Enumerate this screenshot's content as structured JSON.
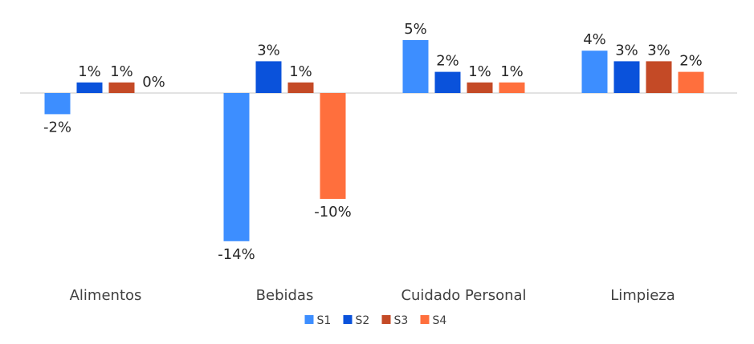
{
  "chart_data": {
    "type": "bar",
    "title": "",
    "xlabel": "",
    "ylabel": "",
    "categories": [
      "Alimentos",
      "Bebidas",
      "Cuidado Personal",
      "Limpieza"
    ],
    "series": [
      {
        "name": "S1",
        "color": "#3D8EFF",
        "values": [
          -2,
          -14,
          5,
          4
        ],
        "labels": [
          "-2%",
          "-14%",
          "5%",
          "4%"
        ]
      },
      {
        "name": "S2",
        "color": "#0A52DB",
        "values": [
          1,
          3,
          2,
          3
        ],
        "labels": [
          "1%",
          "3%",
          "2%",
          "3%"
        ]
      },
      {
        "name": "S3",
        "color": "#C44A26",
        "values": [
          1,
          1,
          1,
          3
        ],
        "labels": [
          "1%",
          "1%",
          "1%",
          "3%"
        ]
      },
      {
        "name": "S4",
        "color": "#FF6F3D",
        "values": [
          0,
          -10,
          1,
          2
        ],
        "labels": [
          "0%",
          "-10%",
          "1%",
          "2%"
        ]
      }
    ],
    "ylim": [
      -14,
      5
    ],
    "grid": false,
    "legend": "bottom"
  }
}
